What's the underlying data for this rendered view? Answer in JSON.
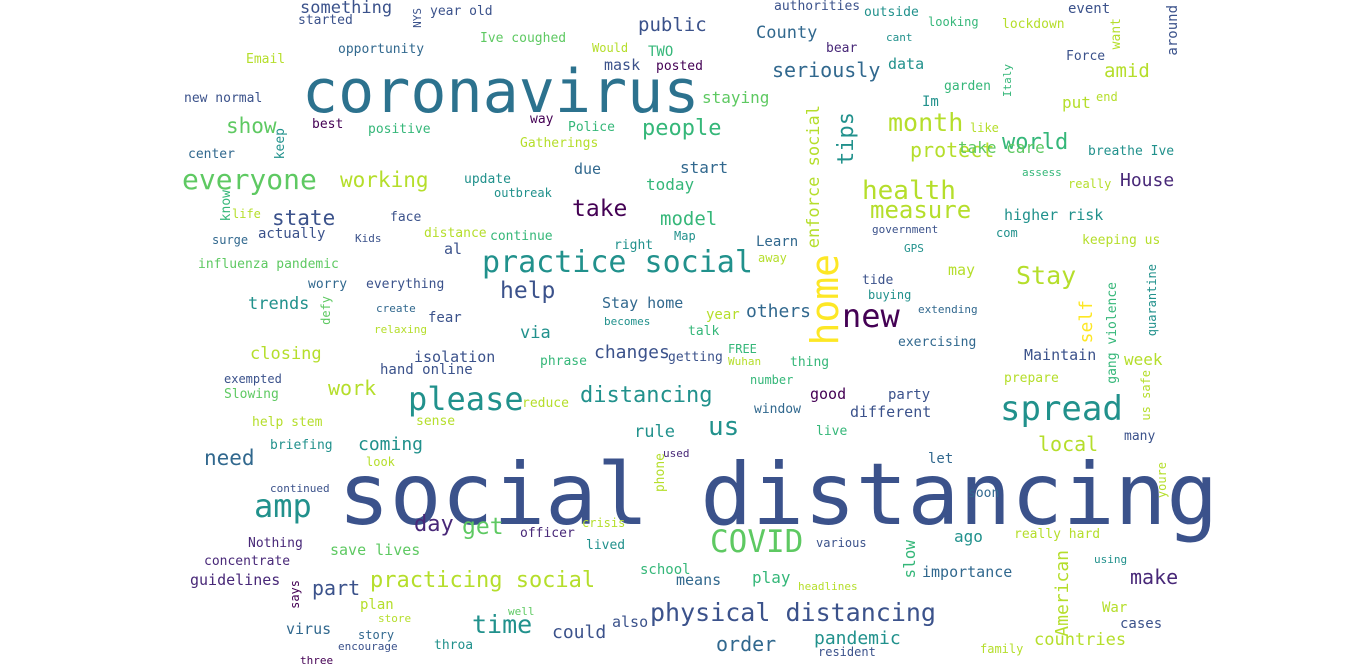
{
  "words": [
    {
      "text": "social distancing",
      "color": "#3b528b"
    },
    {
      "text": "coronavirus",
      "color": "#2c728e"
    },
    {
      "text": "practice social",
      "color": "#21918c"
    },
    {
      "text": "home",
      "color": "#fde725"
    },
    {
      "text": "spread",
      "color": "#21918c"
    },
    {
      "text": "everyone",
      "color": "#5ec962"
    },
    {
      "text": "please",
      "color": "#21918c"
    },
    {
      "text": "COVID",
      "color": "#5ec962"
    },
    {
      "text": "physical distancing",
      "color": "#3b528b"
    },
    {
      "text": "amp",
      "color": "#21918c"
    },
    {
      "text": "new",
      "color": "#440154"
    },
    {
      "text": "health",
      "color": "#b5de2b"
    },
    {
      "text": "measure",
      "color": "#b5de2b"
    },
    {
      "text": "month",
      "color": "#b5de2b"
    },
    {
      "text": "people",
      "color": "#35b779"
    },
    {
      "text": "distancing",
      "color": "#21918c"
    },
    {
      "text": "practicing social",
      "color": "#b5de2b"
    },
    {
      "text": "time",
      "color": "#21918c"
    },
    {
      "text": "take",
      "color": "#440154"
    },
    {
      "text": "help",
      "color": "#3b528b"
    },
    {
      "text": "Stay",
      "color": "#b5de2b"
    },
    {
      "text": "us",
      "color": "#21918c"
    },
    {
      "text": "day",
      "color": "#482878"
    },
    {
      "text": "get",
      "color": "#5ec962"
    },
    {
      "text": "tips",
      "color": "#21918c"
    },
    {
      "text": "world",
      "color": "#35b779"
    },
    {
      "text": "state",
      "color": "#3b528b"
    },
    {
      "text": "working",
      "color": "#b5de2b"
    },
    {
      "text": "seriously",
      "color": "#31688e"
    },
    {
      "text": "protect",
      "color": "#b5de2b"
    },
    {
      "text": "show",
      "color": "#5ec962"
    },
    {
      "text": "need",
      "color": "#31688e"
    },
    {
      "text": "work",
      "color": "#b5de2b"
    },
    {
      "text": "model",
      "color": "#35b779"
    },
    {
      "text": "make",
      "color": "#482878"
    },
    {
      "text": "order",
      "color": "#31688e"
    },
    {
      "text": "enforce social",
      "color": "#b5de2b"
    },
    {
      "text": "self",
      "color": "#fde725"
    },
    {
      "text": "amid",
      "color": "#b5de2b"
    },
    {
      "text": "local",
      "color": "#b5de2b"
    },
    {
      "text": "others",
      "color": "#31688e"
    },
    {
      "text": "pandemic",
      "color": "#21918c"
    },
    {
      "text": "countries",
      "color": "#b5de2b"
    },
    {
      "text": "House",
      "color": "#482878"
    },
    {
      "text": "public",
      "color": "#3b528b"
    },
    {
      "text": "County",
      "color": "#31688e"
    },
    {
      "text": "something",
      "color": "#3b528b"
    },
    {
      "text": "take care",
      "color": "#5ec962"
    },
    {
      "text": "slow",
      "color": "#35b779"
    },
    {
      "text": "American",
      "color": "#b5de2b"
    },
    {
      "text": "part",
      "color": "#3b528b"
    },
    {
      "text": "coming",
      "color": "#21918c"
    },
    {
      "text": "changes",
      "color": "#3b528b"
    },
    {
      "text": "could",
      "color": "#3b528b"
    },
    {
      "text": "trends",
      "color": "#21918c"
    },
    {
      "text": "rule",
      "color": "#21918c"
    },
    {
      "text": "via",
      "color": "#21918c"
    },
    {
      "text": "closing",
      "color": "#b5de2b"
    },
    {
      "text": "mask",
      "color": "#3b528b"
    },
    {
      "text": "data",
      "color": "#21918c"
    },
    {
      "text": "staying",
      "color": "#5ec962"
    },
    {
      "text": "today",
      "color": "#35b779"
    },
    {
      "text": "start",
      "color": "#31688e"
    },
    {
      "text": "due",
      "color": "#31688e"
    },
    {
      "text": "higher risk",
      "color": "#21918c"
    },
    {
      "text": "isolation",
      "color": "#3b528b"
    },
    {
      "text": "Maintain",
      "color": "#3b528b"
    },
    {
      "text": "week",
      "color": "#b5de2b"
    },
    {
      "text": "save lives",
      "color": "#5ec962"
    },
    {
      "text": "guidelines",
      "color": "#482878"
    },
    {
      "text": "importance",
      "color": "#31688e"
    },
    {
      "text": "ago",
      "color": "#21918c"
    },
    {
      "text": "play",
      "color": "#35b779"
    },
    {
      "text": "school",
      "color": "#35b779"
    },
    {
      "text": "means",
      "color": "#31688e"
    },
    {
      "text": "also",
      "color": "#3b528b"
    },
    {
      "text": "put",
      "color": "#b5de2b"
    },
    {
      "text": "Stay home",
      "color": "#31688e"
    },
    {
      "text": "may",
      "color": "#b5de2b"
    },
    {
      "text": "different",
      "color": "#3b528b"
    },
    {
      "text": "good",
      "color": "#440154"
    },
    {
      "text": "party",
      "color": "#3b528b"
    },
    {
      "text": "virus",
      "color": "#31688e"
    },
    {
      "text": "plan",
      "color": "#b5de2b"
    },
    {
      "text": "TWO",
      "color": "#35b779"
    },
    {
      "text": "Learn",
      "color": "#31688e"
    },
    {
      "text": "Im",
      "color": "#21918c"
    },
    {
      "text": "gang violence",
      "color": "#35b779"
    },
    {
      "text": "quarantine",
      "color": "#21918c"
    },
    {
      "text": "us safe",
      "color": "#b5de2b"
    },
    {
      "text": "keeping us",
      "color": "#b5de2b"
    },
    {
      "text": "breathe Ive",
      "color": "#21918c"
    },
    {
      "text": "around",
      "color": "#3b528b"
    },
    {
      "text": "want",
      "color": "#b5de2b"
    },
    {
      "text": "Force",
      "color": "#3b528b"
    },
    {
      "text": "event",
      "color": "#3b528b"
    },
    {
      "text": "lockdown",
      "color": "#b5de2b"
    },
    {
      "text": "Italy",
      "color": "#35b779"
    },
    {
      "text": "garden",
      "color": "#35b779"
    },
    {
      "text": "outside",
      "color": "#21918c"
    },
    {
      "text": "looking",
      "color": "#35b779"
    },
    {
      "text": "authorities",
      "color": "#3b528b"
    },
    {
      "text": "cant",
      "color": "#21918c"
    },
    {
      "text": "bear",
      "color": "#482878"
    },
    {
      "text": "posted",
      "color": "#440154"
    },
    {
      "text": "Would",
      "color": "#b5de2b"
    },
    {
      "text": "Ive coughed",
      "color": "#5ec962"
    },
    {
      "text": "year old",
      "color": "#3b528b"
    },
    {
      "text": "NYS",
      "color": "#3b528b"
    },
    {
      "text": "started",
      "color": "#3b528b"
    },
    {
      "text": "opportunity",
      "color": "#31688e"
    },
    {
      "text": "Email",
      "color": "#b5de2b"
    },
    {
      "text": "new normal",
      "color": "#3b528b"
    },
    {
      "text": "best",
      "color": "#440154"
    },
    {
      "text": "positive",
      "color": "#35b779"
    },
    {
      "text": "center",
      "color": "#31688e"
    },
    {
      "text": "keep",
      "color": "#21918c"
    },
    {
      "text": "Police",
      "color": "#35b779"
    },
    {
      "text": "way",
      "color": "#440154"
    },
    {
      "text": "Gatherings",
      "color": "#b5de2b"
    },
    {
      "text": "update",
      "color": "#21918c"
    },
    {
      "text": "outbreak",
      "color": "#21918c"
    },
    {
      "text": "know",
      "color": "#35b779"
    },
    {
      "text": "life",
      "color": "#b5de2b"
    },
    {
      "text": "face",
      "color": "#3b528b"
    },
    {
      "text": "actually",
      "color": "#3b528b"
    },
    {
      "text": "surge",
      "color": "#31688e"
    },
    {
      "text": "Kids",
      "color": "#3b528b"
    },
    {
      "text": "distance",
      "color": "#b5de2b"
    },
    {
      "text": "continue",
      "color": "#35b779"
    },
    {
      "text": "al",
      "color": "#3b528b"
    },
    {
      "text": "right",
      "color": "#21918c"
    },
    {
      "text": "Map",
      "color": "#21918c"
    },
    {
      "text": "away",
      "color": "#b5de2b"
    },
    {
      "text": "influenza pandemic",
      "color": "#5ec962"
    },
    {
      "text": "worry",
      "color": "#31688e"
    },
    {
      "text": "everything",
      "color": "#3b528b"
    },
    {
      "text": "create",
      "color": "#31688e"
    },
    {
      "text": "defy",
      "color": "#5ec962"
    },
    {
      "text": "relaxing",
      "color": "#b5de2b"
    },
    {
      "text": "fear",
      "color": "#3b528b"
    },
    {
      "text": "becomes",
      "color": "#21918c"
    },
    {
      "text": "talk",
      "color": "#35b779"
    },
    {
      "text": "year",
      "color": "#b5de2b"
    },
    {
      "text": "hand online",
      "color": "#3b528b"
    },
    {
      "text": "phrase",
      "color": "#35b779"
    },
    {
      "text": "FREE",
      "color": "#35b779"
    },
    {
      "text": "Wuhan",
      "color": "#b5de2b"
    },
    {
      "text": "getting",
      "color": "#3b528b"
    },
    {
      "text": "thing",
      "color": "#35b779"
    },
    {
      "text": "number",
      "color": "#35b779"
    },
    {
      "text": "exempted",
      "color": "#3b528b"
    },
    {
      "text": "Slowing",
      "color": "#5ec962"
    },
    {
      "text": "reduce",
      "color": "#b5de2b"
    },
    {
      "text": "window",
      "color": "#31688e"
    },
    {
      "text": "help stem",
      "color": "#b5de2b"
    },
    {
      "text": "sense",
      "color": "#b5de2b"
    },
    {
      "text": "briefing",
      "color": "#21918c"
    },
    {
      "text": "live",
      "color": "#35b779"
    },
    {
      "text": "look",
      "color": "#b5de2b"
    },
    {
      "text": "phone",
      "color": "#b5de2b"
    },
    {
      "text": "used",
      "color": "#482878"
    },
    {
      "text": "continued",
      "color": "#3b528b"
    },
    {
      "text": "Nothing",
      "color": "#482878"
    },
    {
      "text": "concentrate",
      "color": "#482878"
    },
    {
      "text": "officer",
      "color": "#482878"
    },
    {
      "text": "crisis",
      "color": "#b5de2b"
    },
    {
      "text": "lived",
      "color": "#21918c"
    },
    {
      "text": "various",
      "color": "#3b528b"
    },
    {
      "text": "let",
      "color": "#31688e"
    },
    {
      "text": "soon",
      "color": "#31688e"
    },
    {
      "text": "really hard",
      "color": "#b5de2b"
    },
    {
      "text": "using",
      "color": "#21918c"
    },
    {
      "text": "headlines",
      "color": "#b5de2b"
    },
    {
      "text": "says",
      "color": "#440154"
    },
    {
      "text": "story",
      "color": "#31688e"
    },
    {
      "text": "store",
      "color": "#b5de2b"
    },
    {
      "text": "well",
      "color": "#5ec962"
    },
    {
      "text": "throa",
      "color": "#21918c"
    },
    {
      "text": "encourage",
      "color": "#3b528b"
    },
    {
      "text": "three",
      "color": "#440154"
    },
    {
      "text": "resident",
      "color": "#3b528b"
    },
    {
      "text": "family",
      "color": "#b5de2b"
    },
    {
      "text": "War",
      "color": "#b5de2b"
    },
    {
      "text": "cases",
      "color": "#3b528b"
    },
    {
      "text": "many",
      "color": "#3b528b"
    },
    {
      "text": "youre",
      "color": "#b5de2b"
    },
    {
      "text": "prepare",
      "color": "#b5de2b"
    },
    {
      "text": "exercising",
      "color": "#31688e"
    },
    {
      "text": "extending",
      "color": "#31688e"
    },
    {
      "text": "buying",
      "color": "#21918c"
    },
    {
      "text": "tide",
      "color": "#3b528b"
    },
    {
      "text": "GPS",
      "color": "#21918c"
    },
    {
      "text": "government",
      "color": "#3b528b"
    },
    {
      "text": "com",
      "color": "#21918c"
    },
    {
      "text": "assess",
      "color": "#35b779"
    },
    {
      "text": "really",
      "color": "#b5de2b"
    },
    {
      "text": "like",
      "color": "#b5de2b"
    },
    {
      "text": "end",
      "color": "#b5de2b"
    }
  ]
}
